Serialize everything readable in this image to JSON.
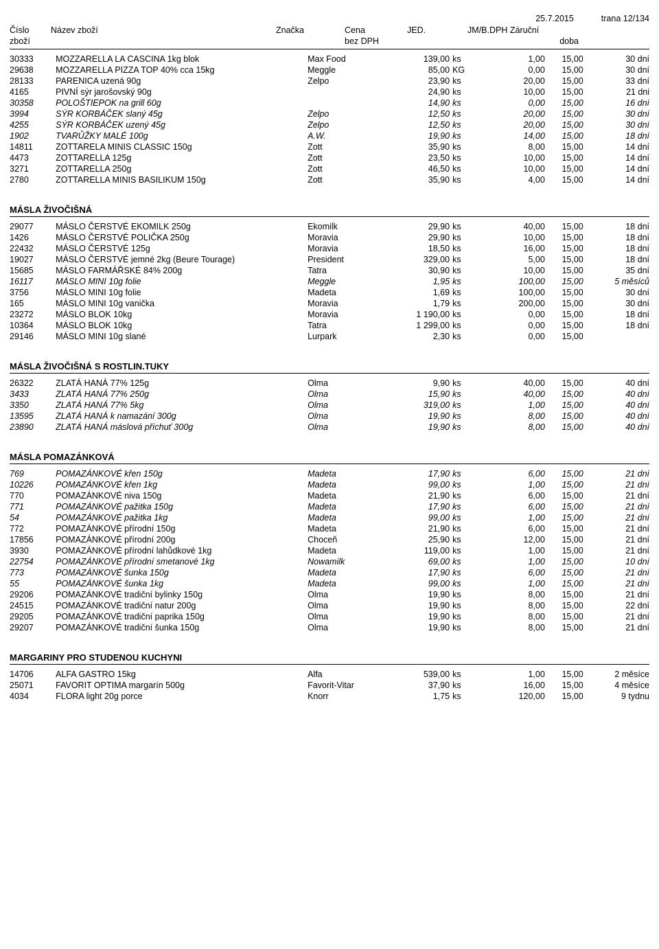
{
  "meta": {
    "date": "25.7.2015",
    "page": "trana 12/134"
  },
  "header": {
    "cislo": "Číslo\nzboží",
    "nazev": "Název zboží",
    "znacka": "Značka",
    "cena": "Cena\nbez DPH",
    "jed": "JED.",
    "jmb": "JM/B.",
    "dph": "DPH",
    "zaruc": "Záruční\ndoba"
  },
  "sections": [
    {
      "title": "",
      "rows": [
        {
          "c": "30333",
          "n": "MOZZARELLA LA CASCINA 1kg blok",
          "z": "Max Food",
          "p": "139,00",
          "u": "ks",
          "j": "1,00",
          "d": "15,00",
          "w": "30 dní",
          "i": false
        },
        {
          "c": "29638",
          "n": "MOZZARELLA PIZZA TOP 40% cca 15kg",
          "z": "Meggle",
          "p": "85,00",
          "u": "KG",
          "j": "0,00",
          "d": "15,00",
          "w": "30 dní",
          "i": false
        },
        {
          "c": "28133",
          "n": "PARENICA uzená 90g",
          "z": "Zelpo",
          "p": "23,90",
          "u": "ks",
          "j": "20,00",
          "d": "15,00",
          "w": "33 dní",
          "i": false
        },
        {
          "c": "4165",
          "n": "PIVNÍ sýr jarošovský 90g",
          "z": "",
          "p": "24,90",
          "u": "ks",
          "j": "10,00",
          "d": "15,00",
          "w": "21 dni",
          "i": false
        },
        {
          "c": "30358",
          "n": "POLOŠTIEPOK na grill 60g",
          "z": "",
          "p": "14,90",
          "u": "ks",
          "j": "0,00",
          "d": "15,00",
          "w": "16 dní",
          "i": true
        },
        {
          "c": "3994",
          "n": "SÝR KORBÁČEK slaný 45g",
          "z": "Zelpo",
          "p": "12,50",
          "u": "ks",
          "j": "20,00",
          "d": "15,00",
          "w": "30 dní",
          "i": true
        },
        {
          "c": "4255",
          "n": "SÝR KORBÁČEK uzený 45g",
          "z": "Zelpo",
          "p": "12,50",
          "u": "ks",
          "j": "20,00",
          "d": "15,00",
          "w": "30 dní",
          "i": true
        },
        {
          "c": "1902",
          "n": "TVARŮŽKY MALÉ 100g",
          "z": "A.W.",
          "p": "19,90",
          "u": "ks",
          "j": "14,00",
          "d": "15,00",
          "w": "18 dní",
          "i": true
        },
        {
          "c": "14811",
          "n": "ZOTTARELA MINIS CLASSIC 150g",
          "z": "Zott",
          "p": "35,90",
          "u": "ks",
          "j": "8,00",
          "d": "15,00",
          "w": "14 dní",
          "i": false
        },
        {
          "c": "4473",
          "n": "ZOTTARELLA 125g",
          "z": "Zott",
          "p": "23,50",
          "u": "ks",
          "j": "10,00",
          "d": "15,00",
          "w": "14 dní",
          "i": false
        },
        {
          "c": "3271",
          "n": "ZOTTARELLA 250g",
          "z": "Zott",
          "p": "46,50",
          "u": "ks",
          "j": "10,00",
          "d": "15,00",
          "w": "14 dní",
          "i": false
        },
        {
          "c": "2780",
          "n": "ZOTTARELLA MINIS BASILIKUM 150g",
          "z": "Zott",
          "p": "35,90",
          "u": "ks",
          "j": "4,00",
          "d": "15,00",
          "w": "14 dní",
          "i": false
        }
      ]
    },
    {
      "title": "MÁSLA ŽIVOČIŠNÁ",
      "rows": [
        {
          "c": "29077",
          "n": "MÁSLO   ČERSTVÉ EKOMILK 250g",
          "z": "Ekomilk",
          "p": "29,90",
          "u": "ks",
          "j": "40,00",
          "d": "15,00",
          "w": "18 dní",
          "i": false
        },
        {
          "c": "1426",
          "n": "MÁSLO   ČERSTVÉ POLIČKA 250g",
          "z": "Moravia",
          "p": "29,90",
          "u": "ks",
          "j": "10,00",
          "d": "15,00",
          "w": "18 dní",
          "i": false
        },
        {
          "c": "22432",
          "n": "MÁSLO  ČERSTVÉ 125g",
          "z": "Moravia",
          "p": "18,50",
          "u": "ks",
          "j": "16,00",
          "d": "15,00",
          "w": "18 dní",
          "i": false
        },
        {
          "c": "19027",
          "n": "MÁSLO  ČERSTVÉ jemné 2kg (Beure Tourage)",
          "z": "President",
          "p": "329,00",
          "u": "ks",
          "j": "5,00",
          "d": "15,00",
          "w": "18 dní",
          "i": false
        },
        {
          "c": "15685",
          "n": "MÁSLO  FARMÁŘSKÉ 84% 200g",
          "z": "Tatra",
          "p": "30,90",
          "u": "ks",
          "j": "10,00",
          "d": "15,00",
          "w": "35 dní",
          "i": false
        },
        {
          "c": "16117",
          "n": "MÁSLO  MINI 10g folie",
          "z": "Meggle",
          "p": "1,95",
          "u": "ks",
          "j": "100,00",
          "d": "15,00",
          "w": "5 měsíců",
          "i": true
        },
        {
          "c": "3756",
          "n": "MÁSLO  MINI 10g folie",
          "z": "Madeta",
          "p": "1,69",
          "u": "ks",
          "j": "100,00",
          "d": "15,00",
          "w": "30 dní",
          "i": false
        },
        {
          "c": "165",
          "n": "MÁSLO  MINI 10g vanička",
          "z": "Moravia",
          "p": "1,79",
          "u": "ks",
          "j": "200,00",
          "d": "15,00",
          "w": "30 dní",
          "i": false
        },
        {
          "c": "23272",
          "n": "MÁSLO BLOK 10kg",
          "z": "Moravia",
          "p": "1 190,00",
          "u": "ks",
          "j": "0,00",
          "d": "15,00",
          "w": "18 dní",
          "i": false
        },
        {
          "c": "10364",
          "n": "MÁSLO BLOK 10kg",
          "z": "Tatra",
          "p": "1 299,00",
          "u": "ks",
          "j": "0,00",
          "d": "15,00",
          "w": "18 dní",
          "i": false
        },
        {
          "c": "29146",
          "n": "MÁSLO MINI 10g slané",
          "z": "Lurpark",
          "p": "2,30",
          "u": "ks",
          "j": "0,00",
          "d": "15,00",
          "w": "",
          "i": false
        }
      ]
    },
    {
      "title": "MÁSLA ŽIVOČIŠNÁ S ROSTLIN.TUKY",
      "rows": [
        {
          "c": "26322",
          "n": "ZLATÁ HANÁ 77% 125g",
          "z": "Olma",
          "p": "9,90",
          "u": "ks",
          "j": "40,00",
          "d": "15,00",
          "w": "40 dní",
          "i": false
        },
        {
          "c": "3433",
          "n": "ZLATÁ HANÁ 77% 250g",
          "z": "Olma",
          "p": "15,90",
          "u": "ks",
          "j": "40,00",
          "d": "15,00",
          "w": "40 dní",
          "i": true
        },
        {
          "c": "3350",
          "n": "ZLATÁ HANÁ 77% 5kg",
          "z": "Olma",
          "p": "319,00",
          "u": "ks",
          "j": "1,00",
          "d": "15,00",
          "w": "40 dní",
          "i": true
        },
        {
          "c": "13595",
          "n": "ZLATÁ HANÁ k namazání 300g",
          "z": "Olma",
          "p": "19,90",
          "u": "ks",
          "j": "8,00",
          "d": "15,00",
          "w": "40 dní",
          "i": true
        },
        {
          "c": "23890",
          "n": "ZLATÁ HANÁ máslová příchuť 300g",
          "z": "Olma",
          "p": "19,90",
          "u": "ks",
          "j": "8,00",
          "d": "15,00",
          "w": "40 dní",
          "i": true
        }
      ]
    },
    {
      "title": "MÁSLA POMAZÁNKOVÁ",
      "rows": [
        {
          "c": "769",
          "n": "POMAZÁNKOVÉ křen 150g",
          "z": "Madeta",
          "p": "17,90",
          "u": "ks",
          "j": "6,00",
          "d": "15,00",
          "w": "21 dní",
          "i": true
        },
        {
          "c": "10226",
          "n": "POMAZÁNKOVÉ křen 1kg",
          "z": "Madeta",
          "p": "99,00",
          "u": "ks",
          "j": "1,00",
          "d": "15,00",
          "w": "21 dní",
          "i": true
        },
        {
          "c": "770",
          "n": "POMAZÁNKOVÉ niva 150g",
          "z": "Madeta",
          "p": "21,90",
          "u": "ks",
          "j": "6,00",
          "d": "15,00",
          "w": "21 dní",
          "i": false
        },
        {
          "c": "771",
          "n": "POMAZÁNKOVÉ pažitka 150g",
          "z": "Madeta",
          "p": "17,90",
          "u": "ks",
          "j": "6,00",
          "d": "15,00",
          "w": "21 dní",
          "i": true
        },
        {
          "c": "54",
          "n": "POMAZÁNKOVÉ pažitka 1kg",
          "z": "Madeta",
          "p": "99,00",
          "u": "ks",
          "j": "1,00",
          "d": "15,00",
          "w": "21 dní",
          "i": true
        },
        {
          "c": "772",
          "n": "POMAZÁNKOVÉ přírodní 150g",
          "z": "Madeta",
          "p": "21,90",
          "u": "ks",
          "j": "6,00",
          "d": "15,00",
          "w": "21 dní",
          "i": false
        },
        {
          "c": "17856",
          "n": "POMAZÁNKOVÉ přírodní 200g",
          "z": "Choceň",
          "p": "25,90",
          "u": "ks",
          "j": "12,00",
          "d": "15,00",
          "w": "21 dní",
          "i": false
        },
        {
          "c": "3930",
          "n": "POMAZÁNKOVÉ přírodní lahůdkové 1kg",
          "z": "Madeta",
          "p": "119,00",
          "u": "ks",
          "j": "1,00",
          "d": "15,00",
          "w": "21 dní",
          "i": false
        },
        {
          "c": "22754",
          "n": "POMAZÁNKOVÉ přírodní smetanové 1kg",
          "z": "Nowamilk",
          "p": "69,00",
          "u": "ks",
          "j": "1,00",
          "d": "15,00",
          "w": "10 dní",
          "i": true
        },
        {
          "c": "773",
          "n": "POMAZÁNKOVÉ šunka 150g",
          "z": "Madeta",
          "p": "17,90",
          "u": "ks",
          "j": "6,00",
          "d": "15,00",
          "w": "21 dní",
          "i": true
        },
        {
          "c": "55",
          "n": "POMAZÁNKOVÉ šunka 1kg",
          "z": "Madeta",
          "p": "99,00",
          "u": "ks",
          "j": "1,00",
          "d": "15,00",
          "w": "21 dní",
          "i": true
        },
        {
          "c": "29206",
          "n": "POMAZÁNKOVÉ tradiční bylinky 150g",
          "z": "Olma",
          "p": "19,90",
          "u": "ks",
          "j": "8,00",
          "d": "15,00",
          "w": "21 dní",
          "i": false
        },
        {
          "c": "24515",
          "n": "POMAZÁNKOVÉ tradiční natur 200g",
          "z": "Olma",
          "p": "19,90",
          "u": "ks",
          "j": "8,00",
          "d": "15,00",
          "w": "22 dní",
          "i": false
        },
        {
          "c": "29205",
          "n": "POMAZÁNKOVÉ tradiční paprika 150g",
          "z": "Olma",
          "p": "19,90",
          "u": "ks",
          "j": "8,00",
          "d": "15,00",
          "w": "21 dní",
          "i": false
        },
        {
          "c": "29207",
          "n": "POMAZÁNKOVÉ tradiční šunka 150g",
          "z": "Olma",
          "p": "19,90",
          "u": "ks",
          "j": "8,00",
          "d": "15,00",
          "w": "21 dní",
          "i": false
        }
      ]
    },
    {
      "title": "MARGARINY PRO STUDENOU KUCHYNI",
      "rows": [
        {
          "c": "14706",
          "n": "ALFA GASTRO  15kg",
          "z": "Alfa",
          "p": "539,00",
          "u": "ks",
          "j": "1,00",
          "d": "15,00",
          "w": "2 měsíce",
          "i": false
        },
        {
          "c": "25071",
          "n": "FAVORIT OPTIMA margarín 500g",
          "z": "Favorit-Vitar",
          "p": "37,90",
          "u": "ks",
          "j": "16,00",
          "d": "15,00",
          "w": "4 měsíce",
          "i": false
        },
        {
          "c": "4034",
          "n": "FLORA light 20g porce",
          "z": "Knorr",
          "p": "1,75",
          "u": "ks",
          "j": "120,00",
          "d": "15,00",
          "w": "9 tydnu",
          "i": false
        }
      ]
    }
  ]
}
